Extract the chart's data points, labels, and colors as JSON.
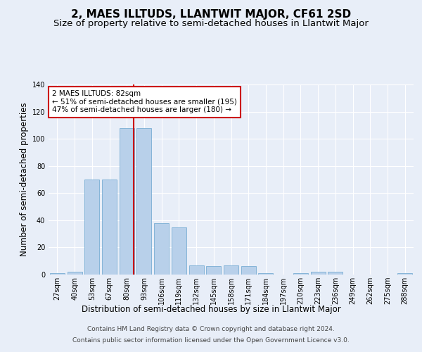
{
  "title": "2, MAES ILLTUDS, LLANTWIT MAJOR, CF61 2SD",
  "subtitle": "Size of property relative to semi-detached houses in Llantwit Major",
  "xlabel": "Distribution of semi-detached houses by size in Llantwit Major",
  "ylabel": "Number of semi-detached properties",
  "categories": [
    "27sqm",
    "40sqm",
    "53sqm",
    "67sqm",
    "80sqm",
    "93sqm",
    "106sqm",
    "119sqm",
    "132sqm",
    "145sqm",
    "158sqm",
    "171sqm",
    "184sqm",
    "197sqm",
    "210sqm",
    "223sqm",
    "236sqm",
    "249sqm",
    "262sqm",
    "275sqm",
    "288sqm"
  ],
  "values": [
    1,
    2,
    70,
    70,
    108,
    108,
    38,
    35,
    7,
    6,
    7,
    6,
    1,
    0,
    1,
    2,
    2,
    0,
    0,
    0,
    1
  ],
  "bar_color": "#b8d0ea",
  "bar_edge_color": "#7aaed4",
  "highlight_index": 4,
  "highlight_line_xoffset": 0.4,
  "highlight_line_color": "#cc0000",
  "annotation_text": "2 MAES ILLTUDS: 82sqm\n← 51% of semi-detached houses are smaller (195)\n47% of semi-detached houses are larger (180) →",
  "annotation_box_facecolor": "#ffffff",
  "annotation_box_edgecolor": "#cc0000",
  "ylim": [
    0,
    140
  ],
  "yticks": [
    0,
    20,
    40,
    60,
    80,
    100,
    120,
    140
  ],
  "footer_line1": "Contains HM Land Registry data © Crown copyright and database right 2024.",
  "footer_line2": "Contains public sector information licensed under the Open Government Licence v3.0.",
  "bg_color": "#e8eef8",
  "plot_bg_color": "#e8eef8",
  "grid_color": "#ffffff",
  "title_fontsize": 11,
  "subtitle_fontsize": 9.5,
  "axis_label_fontsize": 8.5,
  "tick_fontsize": 7,
  "footer_fontsize": 6.5,
  "annotation_fontsize": 7.5
}
